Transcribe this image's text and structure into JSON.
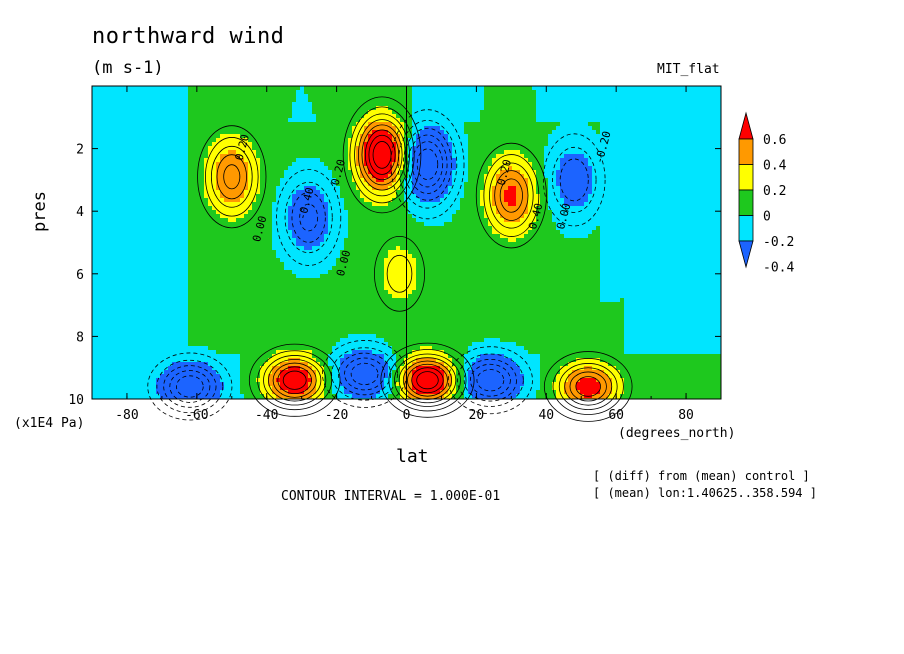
{
  "chart_data": {
    "type": "heatmap",
    "title": "northward wind",
    "units": "(m s-1)",
    "run_label": "MIT_flat",
    "xlabel": "lat",
    "x_units": "(degrees_north)",
    "ylabel": "pres",
    "y_units": "(x1E4 Pa)",
    "xlim": [
      -90,
      90
    ],
    "ylim": [
      10,
      0
    ],
    "x_ticks": [
      -80,
      -60,
      -40,
      -20,
      0,
      20,
      40,
      60,
      80
    ],
    "y_ticks": [
      2,
      4,
      6,
      8,
      10
    ],
    "x_tick_labels": [
      "-80",
      "-60",
      "-40",
      "-20",
      "0",
      "20",
      "40",
      "60",
      "80"
    ],
    "y_tick_labels": [
      "2",
      "4",
      "6",
      "8",
      "10"
    ],
    "contour_interval_label": "CONTOUR INTERVAL = 1.000E-01",
    "notes": [
      "[ (diff) from (mean) control ]",
      "[ (mean) lon:1.40625..358.594 ]"
    ],
    "colorbar": {
      "levels": [
        -0.4,
        -0.2,
        0,
        0.2,
        0.4,
        0.6
      ],
      "level_labels": [
        "-0.4",
        "-0.2",
        "0",
        "0.2",
        "0.4",
        "0.6"
      ],
      "colors": [
        "#1c64ff",
        "#00e5ff",
        "#1ec81e",
        "#ffff00",
        "#ff9900",
        "#ff0000"
      ]
    },
    "contour_labels": [
      {
        "text": "0.20",
        "x": -47,
        "y": 2.4
      },
      {
        "text": "0.00",
        "x": -42,
        "y": 5.0
      },
      {
        "text": "-0.40",
        "x": -29,
        "y": 4.3
      },
      {
        "text": "-0.20",
        "x": -20,
        "y": 3.4
      },
      {
        "text": "0.00",
        "x": -18,
        "y": 6.1
      },
      {
        "text": "0.20",
        "x": 28,
        "y": 3.2
      },
      {
        "text": "0.40",
        "x": 37,
        "y": 4.6
      },
      {
        "text": "0.00",
        "x": 45,
        "y": 4.6
      },
      {
        "text": "-0.20",
        "x": 56,
        "y": 2.5
      }
    ],
    "features": [
      {
        "sign": "positive",
        "lat": -50,
        "pres": 2.9,
        "peak": 0.55
      },
      {
        "sign": "negative",
        "lat": -28,
        "pres": 4.2,
        "peak": -0.45
      },
      {
        "sign": "positive",
        "lat": -7,
        "pres": 2.2,
        "peak": 0.9
      },
      {
        "sign": "negative",
        "lat": 6,
        "pres": 2.5,
        "peak": -0.7
      },
      {
        "sign": "positive",
        "lat": 30,
        "pres": 3.5,
        "peak": 0.6
      },
      {
        "sign": "negative",
        "lat": 48,
        "pres": 3.0,
        "peak": -0.4
      },
      {
        "sign": "positive",
        "lat": -2,
        "pres": 6.0,
        "peak": 0.25
      },
      {
        "sign": "negative",
        "lat": -62,
        "pres": 9.6,
        "peak": -0.6
      },
      {
        "sign": "positive",
        "lat": -32,
        "pres": 9.4,
        "peak": 0.8
      },
      {
        "sign": "negative",
        "lat": -12,
        "pres": 9.2,
        "peak": -0.6
      },
      {
        "sign": "positive",
        "lat": 6,
        "pres": 9.4,
        "peak": 0.9
      },
      {
        "sign": "negative",
        "lat": 24,
        "pres": 9.4,
        "peak": -0.6
      },
      {
        "sign": "positive",
        "lat": 52,
        "pres": 9.6,
        "peak": 0.7
      }
    ]
  }
}
